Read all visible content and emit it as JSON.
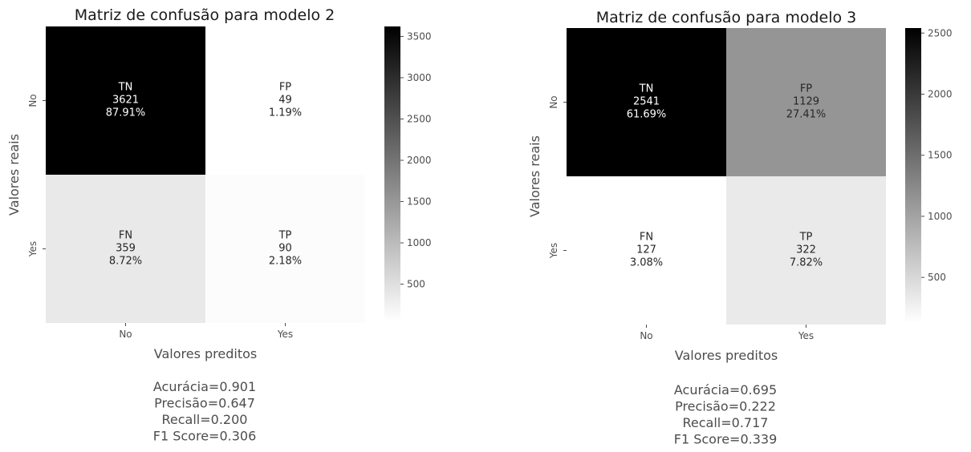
{
  "chart_data": [
    {
      "type": "heatmap",
      "title": "Matriz de confusão para modelo 2",
      "xlabel": "Valores preditos",
      "ylabel": "Valores reais",
      "x_categories": [
        "No",
        "Yes"
      ],
      "y_categories": [
        "No",
        "Yes"
      ],
      "cells": [
        [
          {
            "label": "TN",
            "count": 3621,
            "pct": "87.91%"
          },
          {
            "label": "FP",
            "count": 49,
            "pct": "1.19%"
          }
        ],
        [
          {
            "label": "FN",
            "count": 359,
            "pct": "8.72%"
          },
          {
            "label": "TP",
            "count": 90,
            "pct": "2.18%"
          }
        ]
      ],
      "colorbar": {
        "min": 49,
        "max": 3621,
        "ticks": [
          500,
          1000,
          1500,
          2000,
          2500,
          3000,
          3500
        ]
      },
      "metrics": [
        "Acurácia=0.901",
        "Precisão=0.647",
        "Recall=0.200",
        "F1 Score=0.306"
      ],
      "colormap": "Greys"
    },
    {
      "type": "heatmap",
      "title": "Matriz de confusão para modelo 3",
      "xlabel": "Valores preditos",
      "ylabel": "Valores reais",
      "x_categories": [
        "No",
        "Yes"
      ],
      "y_categories": [
        "No",
        "Yes"
      ],
      "cells": [
        [
          {
            "label": "TN",
            "count": 2541,
            "pct": "61.69%"
          },
          {
            "label": "FP",
            "count": 1129,
            "pct": "27.41%"
          }
        ],
        [
          {
            "label": "FN",
            "count": 127,
            "pct": "3.08%"
          },
          {
            "label": "TP",
            "count": 322,
            "pct": "7.82%"
          }
        ]
      ],
      "colorbar": {
        "min": 127,
        "max": 2541,
        "ticks": [
          500,
          1000,
          1500,
          2000,
          2500
        ]
      },
      "metrics": [
        "Acurácia=0.695",
        "Precisão=0.222",
        "Recall=0.717",
        "F1 Score=0.339"
      ],
      "colormap": "Greys"
    }
  ]
}
